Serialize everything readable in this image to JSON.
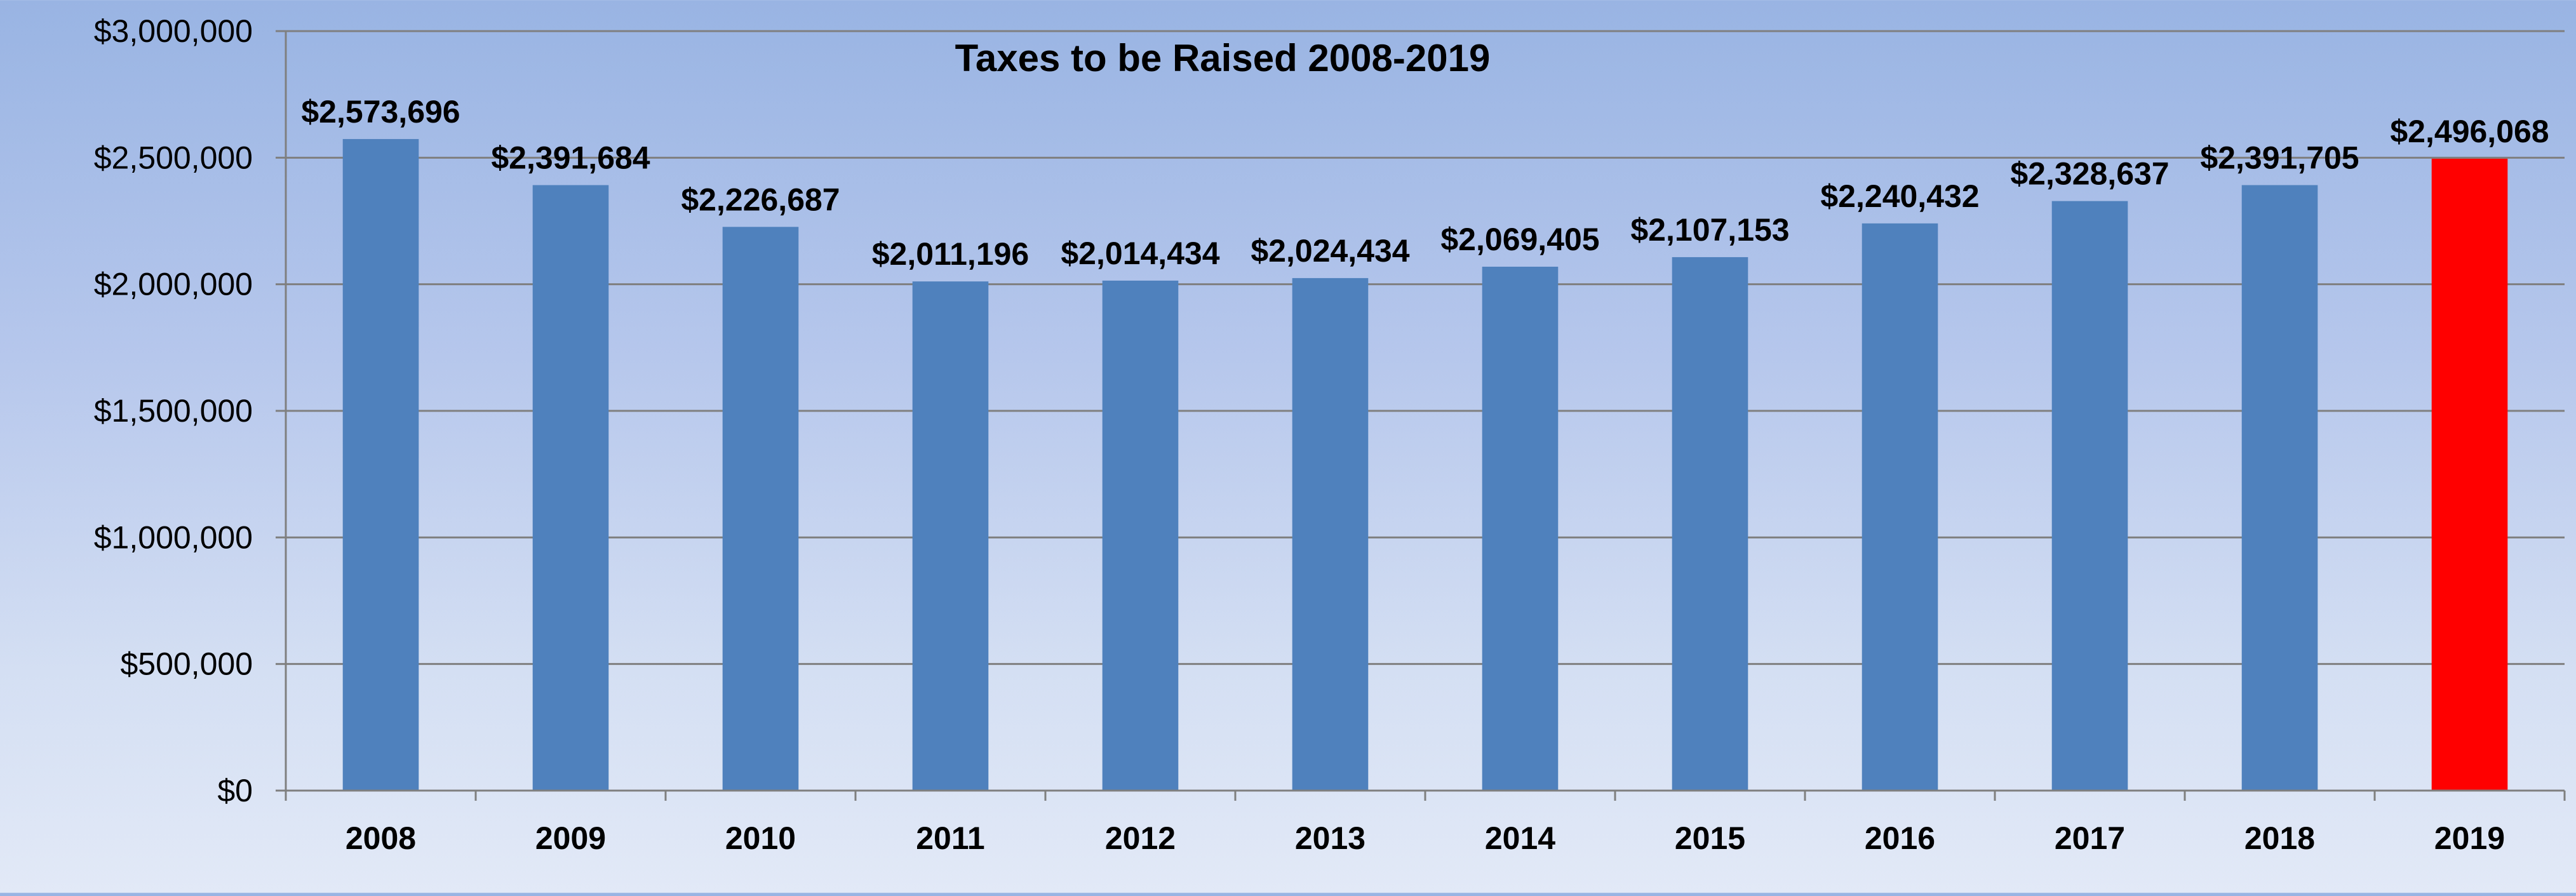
{
  "chart_data": {
    "type": "bar",
    "title": "Taxes to be Raised 2008-2019",
    "xlabel": "",
    "ylabel": "",
    "categories": [
      "2008",
      "2009",
      "2010",
      "2011",
      "2012",
      "2013",
      "2014",
      "2015",
      "2016",
      "2017",
      "2018",
      "2019"
    ],
    "values": [
      2573696,
      2391684,
      2226687,
      2011196,
      2014434,
      2024434,
      2069405,
      2107153,
      2240432,
      2328637,
      2391705,
      2496068
    ],
    "data_labels": [
      "$2,573,696",
      "$2,391,684",
      "$2,226,687",
      "$2,011,196",
      "$2,014,434",
      "$2,024,434",
      "$2,069,405",
      "$2,107,153",
      "$2,240,432",
      "$2,328,637",
      "$2,391,705",
      "$2,496,068"
    ],
    "ylim": [
      0,
      3000000
    ],
    "yticks": [
      0,
      500000,
      1000000,
      1500000,
      2000000,
      2500000,
      3000000
    ],
    "ytick_labels": [
      "$0",
      "$500,000",
      "$1,000,000",
      "$1,500,000",
      "$2,000,000",
      "$2,500,000",
      "$3,000,000"
    ],
    "grid": true,
    "legend": "none",
    "colors": {
      "bar": "#4f81bd",
      "highlight_bar": "#ff0000",
      "highlight_category": "2019",
      "grid": "#7f7f7f",
      "axis": "#7f7f7f",
      "text": "#000000"
    }
  }
}
